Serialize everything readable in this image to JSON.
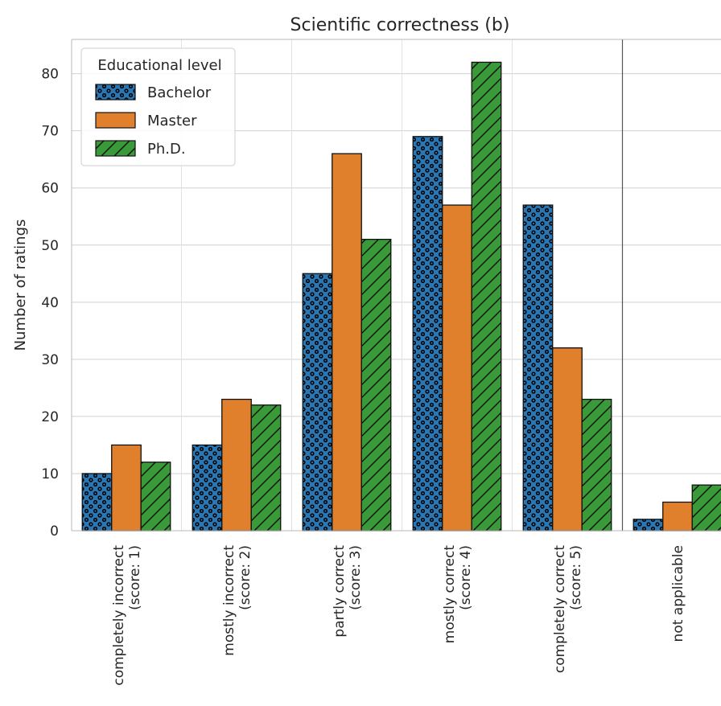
{
  "chart_data": {
    "type": "bar",
    "title": "Scientific correctness (b)",
    "xlabel": "",
    "ylabel": "Number of ratings",
    "ylim": [
      0,
      86
    ],
    "yticks": [
      0,
      10,
      20,
      30,
      40,
      50,
      60,
      70,
      80
    ],
    "grid": true,
    "categories": [
      [
        "completely incorrect",
        "(score: 1)"
      ],
      [
        "mostly incorrect",
        "(score: 2)"
      ],
      [
        "partly correct",
        "(score: 3)"
      ],
      [
        "mostly correct",
        "(score: 4)"
      ],
      [
        "completely correct",
        "(score: 5)"
      ],
      [
        "not applicable"
      ]
    ],
    "separator_after_category_index": 4,
    "legend": {
      "title": "Educational level",
      "placement": "top-left"
    },
    "series": [
      {
        "name": "Bachelor",
        "color": "#2a77b4",
        "hatch": "dots",
        "values": [
          10,
          15,
          45,
          69,
          57,
          2
        ]
      },
      {
        "name": "Master",
        "color": "#e0802c",
        "hatch": "none",
        "values": [
          15,
          23,
          66,
          57,
          32,
          5
        ]
      },
      {
        "name": "Ph.D.",
        "color": "#3a9a3a",
        "hatch": "diagonal",
        "values": [
          12,
          22,
          51,
          82,
          23,
          8
        ]
      }
    ]
  }
}
